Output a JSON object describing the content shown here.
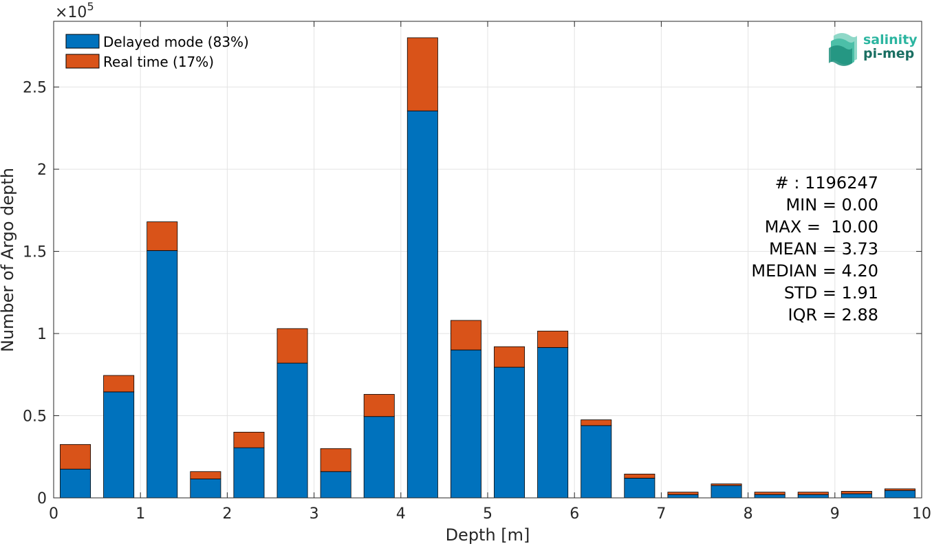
{
  "chart_data": {
    "type": "bar",
    "stacked": true,
    "xlabel": "Depth [m]",
    "ylabel": "Number of Argo depth",
    "xlim": [
      0,
      10
    ],
    "ylim": [
      0,
      290000
    ],
    "x_ticks": [
      "0",
      "1",
      "2",
      "3",
      "4",
      "5",
      "6",
      "7",
      "8",
      "9",
      "10"
    ],
    "y_ticks": [
      "0",
      "0.5",
      "1",
      "1.5",
      "2",
      "2.5"
    ],
    "y_exponent_label": "×10",
    "y_exponent_power": "5",
    "grid": true,
    "legend_position": "top-left",
    "bin_centers": [
      0.25,
      0.75,
      1.25,
      1.75,
      2.25,
      2.75,
      3.25,
      3.75,
      4.25,
      4.75,
      5.25,
      5.75,
      6.25,
      6.75,
      7.25,
      7.75,
      8.25,
      8.75,
      9.25,
      9.75
    ],
    "series": [
      {
        "name": "Delayed mode (83%)",
        "color": "#0072BD",
        "values": [
          17500,
          64500,
          150500,
          11500,
          30500,
          82000,
          16000,
          49500,
          235500,
          90000,
          79500,
          91500,
          44000,
          12000,
          2000,
          7500,
          2000,
          2000,
          2500,
          4500
        ]
      },
      {
        "name": "Real time (17%)",
        "color": "#D95319",
        "values": [
          15000,
          10000,
          17500,
          4500,
          9500,
          21000,
          14000,
          13500,
          44500,
          18000,
          12500,
          10000,
          3500,
          2500,
          1500,
          1000,
          1500,
          1500,
          1500,
          1000
        ]
      }
    ],
    "stats": {
      "count": "# : 1196247",
      "min": "MIN = 0.00",
      "max": "MAX =  10.00",
      "mean": "MEAN = 3.73",
      "median": "MEDIAN = 4.20",
      "std": "STD = 1.91",
      "iqr": "IQR = 2.88"
    }
  },
  "logo": {
    "line1": "salinity",
    "line2": "pi-mep",
    "color_light": "#2bb5a0",
    "color_dark": "#1a6f62"
  }
}
